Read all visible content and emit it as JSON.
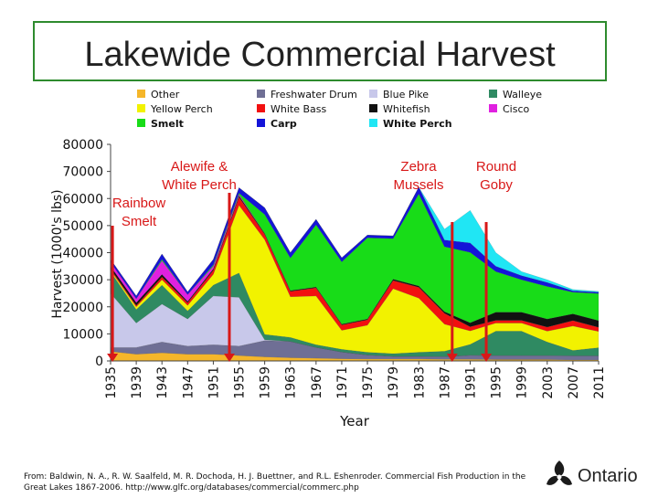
{
  "page": {
    "title": "Lakewide Commercial Harvest",
    "source_line1": "From: Baldwin, N. A., R. W. Saalfeld, M. R. Dochoda, H. J. Buettner, and R.L. Eshenroder.  Commercial Fish Production in the",
    "source_line2": "Great Lakes 1867-2006. http://www.glfc.org/databases/commercial/commerc.php",
    "logo_text": "Ontario"
  },
  "colors": {
    "Other": "#f5b62a",
    "Freshwater Drum": "#6f6f95",
    "Blue Pike": "#c8c8ea",
    "Walleye": "#2f8a62",
    "Yellow Perch": "#f2f200",
    "White Bass": "#f21010",
    "Whitefish": "#111111",
    "Cisco": "#e020e0",
    "Smelt": "#18dc18",
    "Carp": "#1414d8",
    "White Perch": "#20e6f4",
    "arrow": "#d81818",
    "title_border": "#2e8b2e"
  },
  "chart_data": {
    "type": "area",
    "stacked": true,
    "title": "Lakewide Commercial Harvest",
    "xlabel": "Year",
    "ylabel": "Harvest (1000's lbs)",
    "ylim": [
      0,
      80000
    ],
    "yticks": [
      "0",
      "10000",
      "20000",
      "30000",
      "40000",
      "50000",
      "60000",
      "70000",
      "80000"
    ],
    "xticks": [
      "1935",
      "1939",
      "1943",
      "1947",
      "1951",
      "1955",
      "1959",
      "1963",
      "1967",
      "1971",
      "1975",
      "1979",
      "1983",
      "1987",
      "1991",
      "1995",
      "1999",
      "2003",
      "2007",
      "2011"
    ],
    "legend": [
      {
        "name": "Other",
        "bold": false
      },
      {
        "name": "Freshwater Drum",
        "bold": false
      },
      {
        "name": "Blue Pike",
        "bold": false
      },
      {
        "name": "Walleye",
        "bold": false
      },
      {
        "name": "Yellow Perch",
        "bold": false
      },
      {
        "name": "White Bass",
        "bold": false
      },
      {
        "name": "Whitefish",
        "bold": false
      },
      {
        "name": "Cisco",
        "bold": false
      },
      {
        "name": "Smelt",
        "bold": true
      },
      {
        "name": "Carp",
        "bold": true
      },
      {
        "name": "White Perch",
        "bold": true
      }
    ],
    "years": [
      1935,
      1939,
      1943,
      1947,
      1951,
      1955,
      1959,
      1963,
      1967,
      1971,
      1975,
      1979,
      1983,
      1987,
      1991,
      1995,
      1999,
      2003,
      2007,
      2011
    ],
    "series": [
      {
        "name": "Other",
        "values": [
          3500,
          2500,
          3000,
          2500,
          2500,
          2000,
          1500,
          1200,
          1000,
          800,
          700,
          700,
          700,
          600,
          600,
          500,
          500,
          500,
          400,
          400
        ]
      },
      {
        "name": "Freshwater Drum",
        "values": [
          1500,
          2500,
          4000,
          3000,
          3500,
          3500,
          6000,
          6000,
          4000,
          2500,
          1500,
          1000,
          1000,
          1000,
          1500,
          1500,
          1500,
          1500,
          1500,
          1500
        ]
      },
      {
        "name": "Blue Pike",
        "values": [
          20000,
          9000,
          14000,
          10000,
          18000,
          18000,
          300,
          0,
          0,
          0,
          0,
          0,
          0,
          0,
          0,
          0,
          0,
          0,
          0,
          0
        ]
      },
      {
        "name": "Walleye",
        "values": [
          8000,
          5000,
          7000,
          3000,
          4000,
          9000,
          2000,
          1500,
          1000,
          1000,
          1000,
          1000,
          1500,
          2000,
          4000,
          9000,
          9000,
          5000,
          2000,
          3000
        ]
      },
      {
        "name": "Yellow Perch",
        "values": [
          500,
          1000,
          2000,
          2000,
          4000,
          25000,
          35000,
          15000,
          18000,
          7000,
          10000,
          24000,
          20000,
          10000,
          5000,
          3000,
          3000,
          4000,
          9000,
          6000
        ]
      },
      {
        "name": "White Bass",
        "values": [
          500,
          500,
          1000,
          1000,
          1500,
          3000,
          2000,
          2000,
          3000,
          2000,
          2000,
          3000,
          4000,
          4000,
          1500,
          1000,
          1000,
          1500,
          2000,
          1500
        ]
      },
      {
        "name": "Whitefish",
        "values": [
          1000,
          1000,
          1000,
          500,
          500,
          500,
          300,
          300,
          300,
          300,
          300,
          500,
          500,
          600,
          1500,
          3000,
          3000,
          3000,
          2500,
          2500
        ]
      },
      {
        "name": "Cisco",
        "values": [
          1500,
          1500,
          5000,
          2500,
          1000,
          500,
          0,
          0,
          0,
          0,
          0,
          0,
          0,
          0,
          0,
          0,
          0,
          0,
          0,
          0
        ]
      },
      {
        "name": "Smelt",
        "values": [
          0,
          0,
          500,
          0,
          500,
          500,
          7000,
          12000,
          23000,
          23000,
          30000,
          15000,
          34000,
          24000,
          26000,
          15000,
          12000,
          12000,
          8000,
          10000
        ]
      },
      {
        "name": "Carp",
        "values": [
          1000,
          1000,
          2000,
          1000,
          2000,
          2000,
          2500,
          2000,
          2000,
          1500,
          1000,
          1000,
          2500,
          2500,
          3500,
          2000,
          1500,
          1500,
          500,
          500
        ]
      },
      {
        "name": "White Perch",
        "values": [
          0,
          0,
          0,
          0,
          0,
          0,
          0,
          0,
          0,
          0,
          0,
          0,
          0,
          4000,
          12000,
          5000,
          1500,
          1000,
          500,
          300
        ]
      }
    ],
    "annotations": [
      {
        "label": "Alewife & White Perch",
        "line1": "Alewife &",
        "line2": "White Perch",
        "year": 1953.5
      },
      {
        "label": "Rainbow Smelt",
        "line1": "Rainbow",
        "line2": "Smelt",
        "year": 1935.3
      },
      {
        "label": "Zebra Mussels",
        "line1": "Zebra",
        "line2": "Mussels",
        "year": 1988.2
      },
      {
        "label": "Round Goby",
        "line1": "Round",
        "line2": "Goby",
        "year": 1993.5
      }
    ]
  }
}
